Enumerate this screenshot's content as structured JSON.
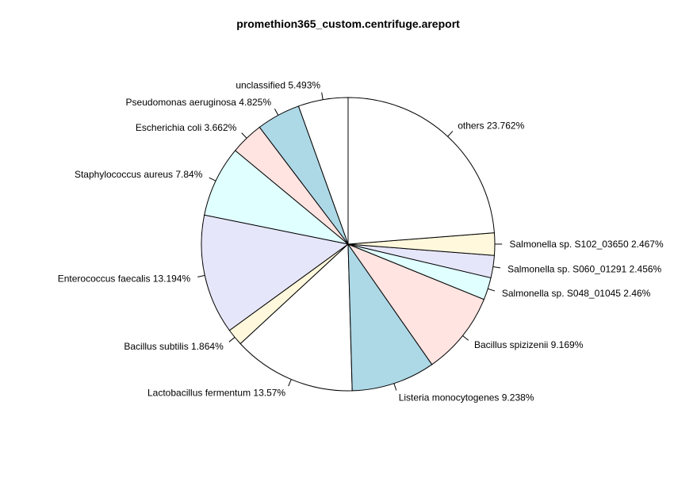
{
  "chart_data": {
    "type": "pie",
    "title": "promethion365_custom.centrifuge.areport",
    "direction": "counterclockwise",
    "start": "top",
    "slices": [
      {
        "label": "unclassified 5.493%",
        "value": 5.493,
        "color": "#ffffff"
      },
      {
        "label": "Pseudomonas aeruginosa 4.825%",
        "value": 4.825,
        "color": "#add8e6"
      },
      {
        "label": "Escherichia coli 3.662%",
        "value": 3.662,
        "color": "#ffe4e1"
      },
      {
        "label": "Staphylococcus aureus 7.84%",
        "value": 7.84,
        "color": "#e0ffff"
      },
      {
        "label": "Enterococcus faecalis 13.194%",
        "value": 13.194,
        "color": "#e6e6fa"
      },
      {
        "label": "Bacillus subtilis 1.864%",
        "value": 1.864,
        "color": "#fff8dc"
      },
      {
        "label": "Lactobacillus fermentum 13.57%",
        "value": 13.57,
        "color": "#ffffff"
      },
      {
        "label": "Listeria monocytogenes 9.238%",
        "value": 9.238,
        "color": "#add8e6"
      },
      {
        "label": "Bacillus spizizenii 9.169%",
        "value": 9.169,
        "color": "#ffe4e1"
      },
      {
        "label": "Salmonella sp. S048_01045 2.46%",
        "value": 2.46,
        "color": "#e0ffff"
      },
      {
        "label": "Salmonella sp. S060_01291 2.456%",
        "value": 2.456,
        "color": "#e6e6fa"
      },
      {
        "label": "Salmonella sp. S102_03650 2.467%",
        "value": 2.467,
        "color": "#fff8dc"
      },
      {
        "label": "others 23.762%",
        "value": 23.762,
        "color": "#ffffff"
      }
    ]
  }
}
